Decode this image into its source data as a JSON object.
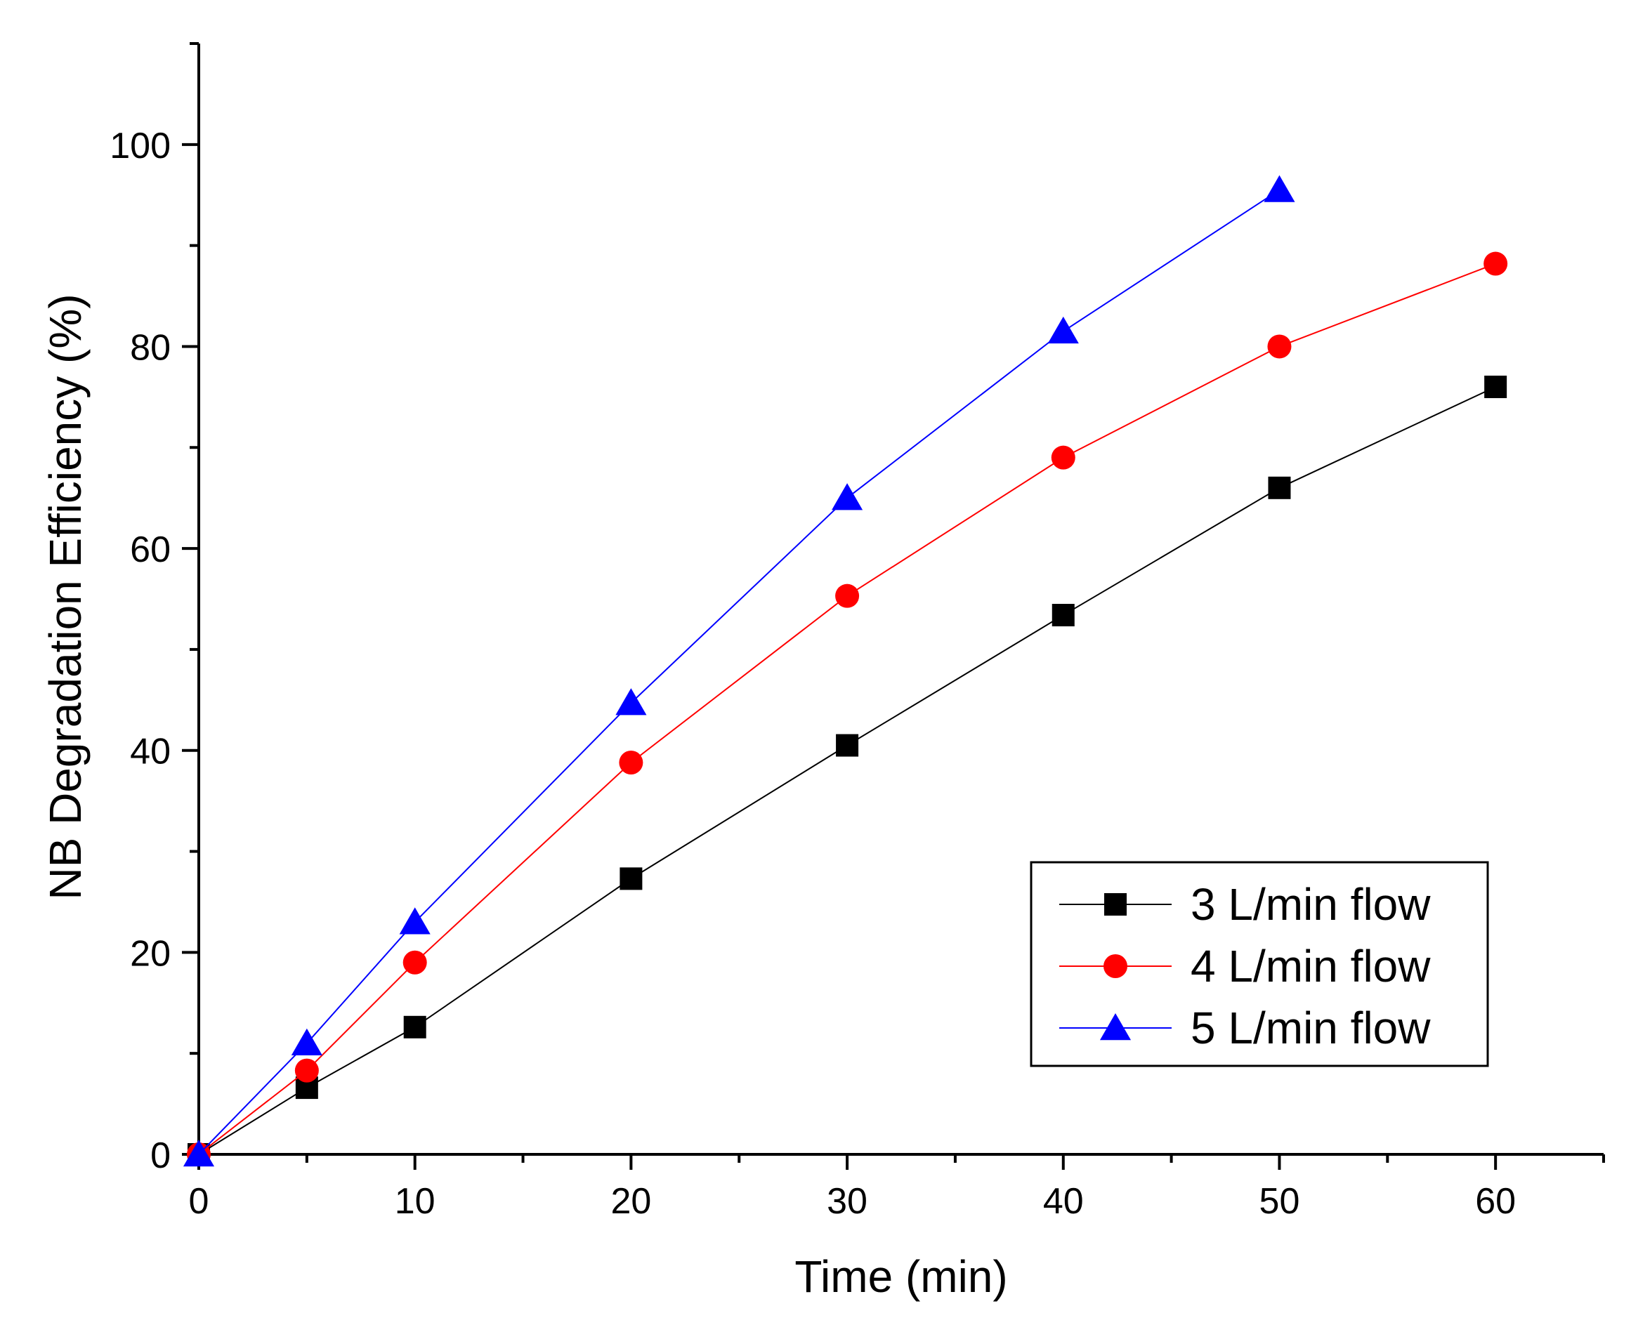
{
  "chart_data": {
    "type": "line",
    "title": "",
    "xlabel": "Time (min)",
    "ylabel": "NB Degradation Efficiency (%)",
    "xlim": [
      0,
      65
    ],
    "ylim": [
      0,
      110
    ],
    "x_ticks": [
      0,
      10,
      20,
      30,
      40,
      50,
      60
    ],
    "x_minor_ticks": [
      5,
      15,
      25,
      35,
      45,
      55,
      65
    ],
    "y_ticks": [
      0,
      20,
      40,
      60,
      80,
      100
    ],
    "y_minor_ticks": [
      10,
      30,
      50,
      70,
      90,
      110
    ],
    "legend_position": "lower-right",
    "series": [
      {
        "name": "3 L/min flow",
        "color": "#000000",
        "marker": "square",
        "x": [
          0,
          5,
          10,
          20,
          30,
          40,
          50,
          60
        ],
        "y": [
          0,
          6.6,
          12.6,
          27.3,
          40.5,
          53.4,
          66.0,
          76.0
        ]
      },
      {
        "name": "4 L/min flow",
        "color": "#ff0000",
        "marker": "circle",
        "x": [
          0,
          5,
          10,
          20,
          30,
          40,
          50,
          60
        ],
        "y": [
          0,
          8.3,
          19.0,
          38.8,
          55.3,
          69.0,
          80.0,
          88.2
        ]
      },
      {
        "name": "5 L/min flow",
        "color": "#0000ff",
        "marker": "triangle",
        "x": [
          0,
          5,
          10,
          20,
          30,
          40,
          50
        ],
        "y": [
          0,
          11.0,
          23.0,
          44.7,
          65.0,
          81.5,
          95.5
        ]
      }
    ]
  }
}
